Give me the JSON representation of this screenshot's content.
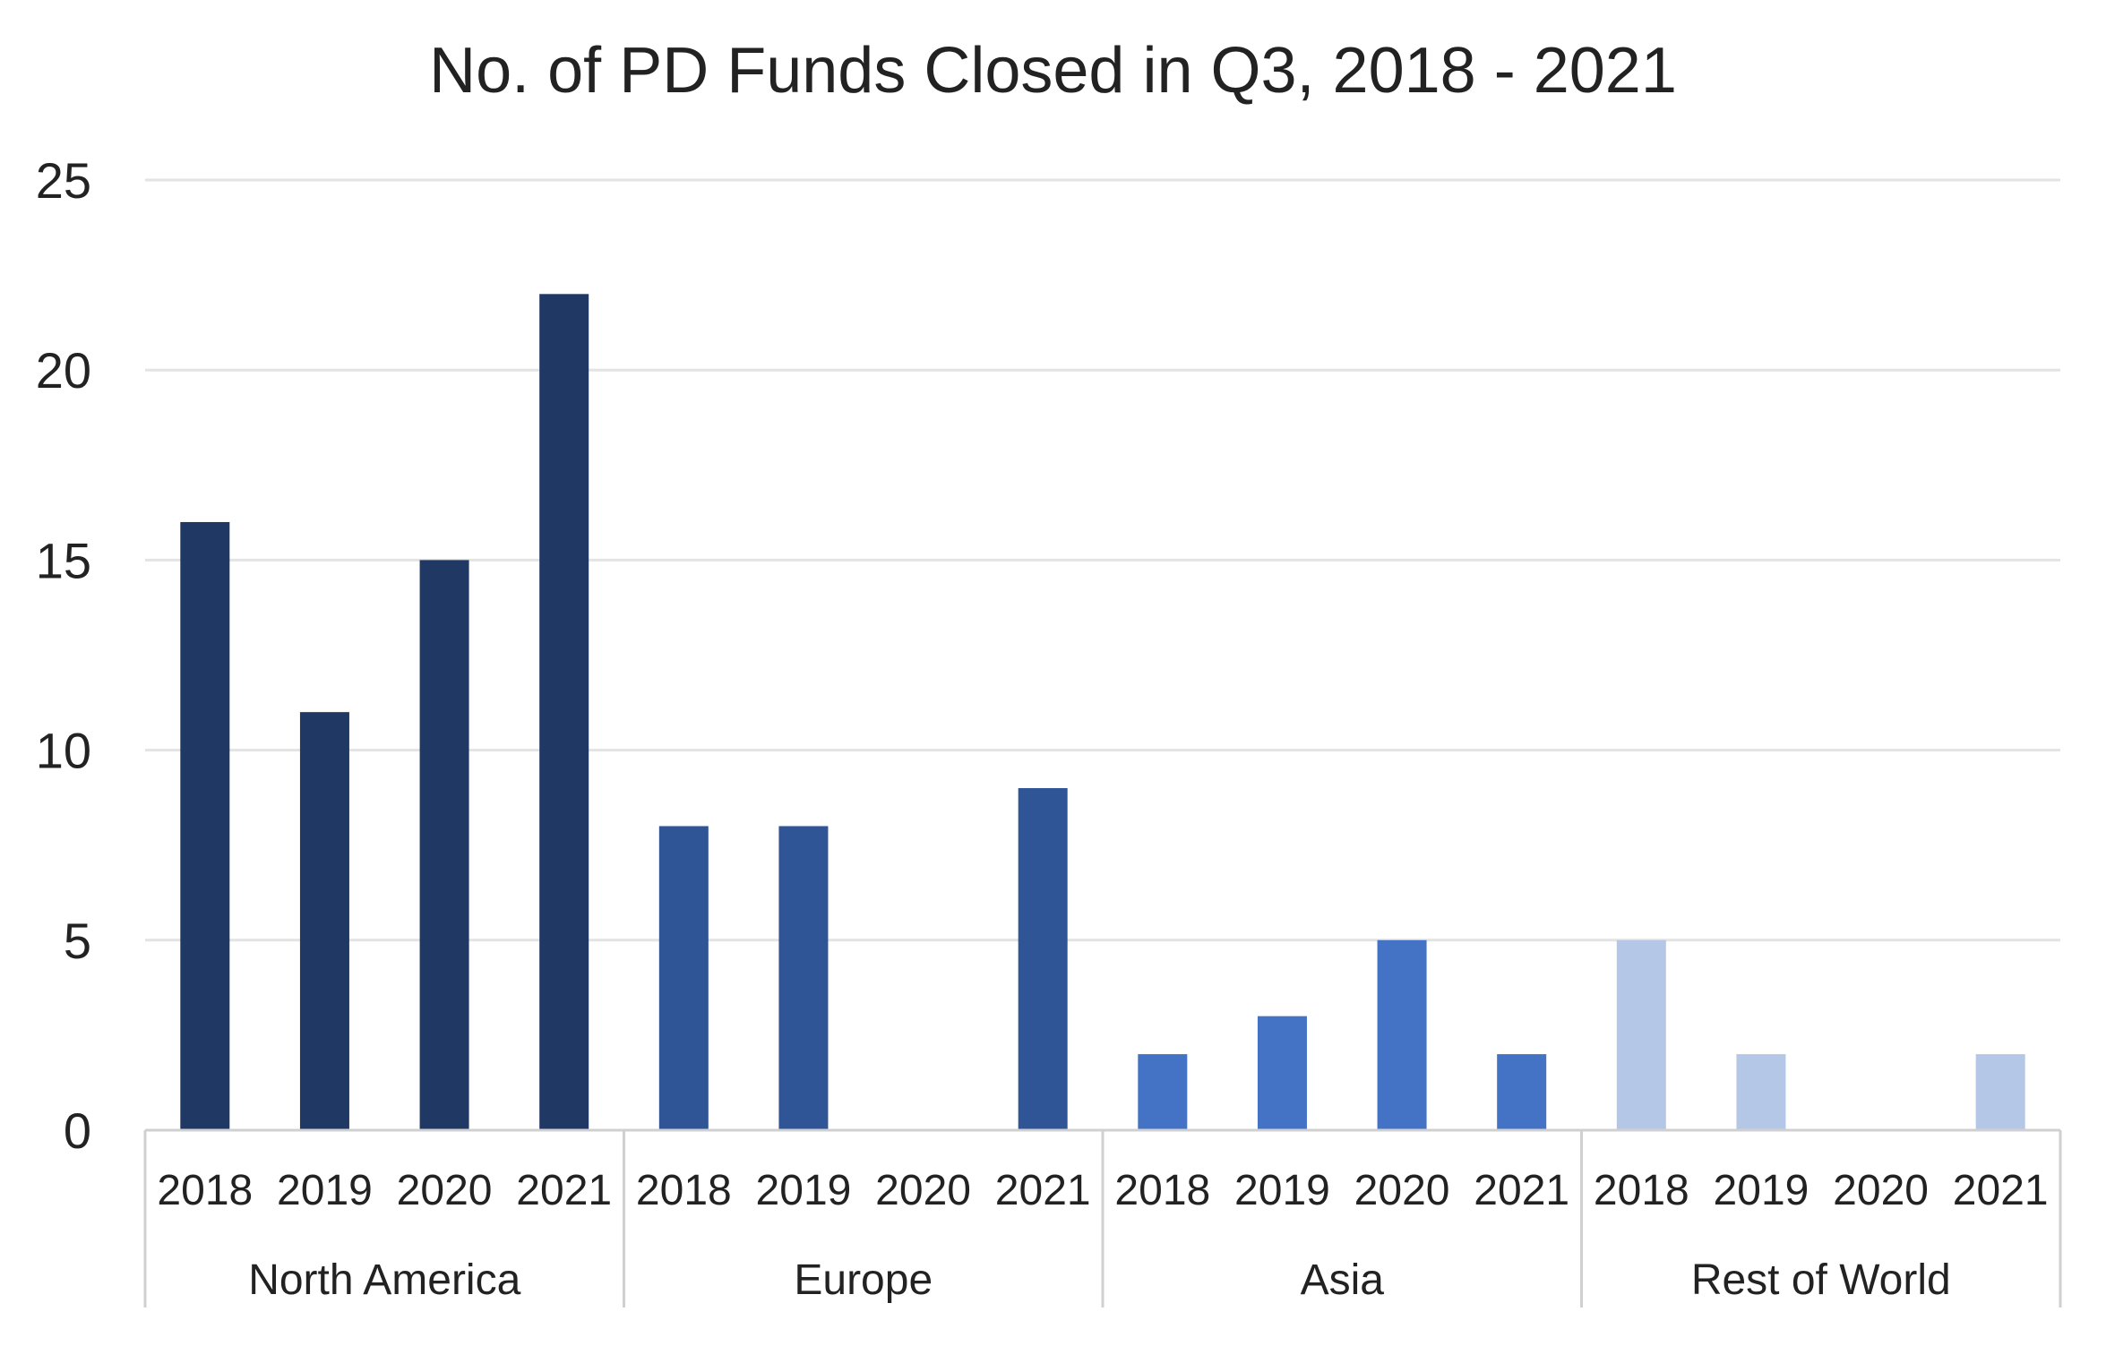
{
  "chart_data": {
    "type": "bar",
    "title": "No. of PD Funds Closed in Q3, 2018 - 2021",
    "xlabel": "",
    "ylabel": "",
    "ylim": [
      0,
      25
    ],
    "yticks": [
      0,
      5,
      10,
      15,
      20,
      25
    ],
    "grid": true,
    "legend": "none",
    "groups": [
      {
        "name": "North America",
        "color": "#203864",
        "categories": [
          "2018",
          "2019",
          "2020",
          "2021"
        ],
        "values": [
          16,
          11,
          15,
          22
        ]
      },
      {
        "name": "Europe",
        "color": "#2F5597",
        "categories": [
          "2018",
          "2019",
          "2020",
          "2021"
        ],
        "values": [
          8,
          8,
          0,
          9
        ]
      },
      {
        "name": "Asia",
        "color": "#4472C4",
        "categories": [
          "2018",
          "2019",
          "2020",
          "2021"
        ],
        "values": [
          2,
          3,
          5,
          2
        ]
      },
      {
        "name": "Rest of World",
        "color": "#B4C7E7",
        "categories": [
          "2018",
          "2019",
          "2020",
          "2021"
        ],
        "values": [
          5,
          2,
          0,
          2
        ]
      }
    ]
  }
}
